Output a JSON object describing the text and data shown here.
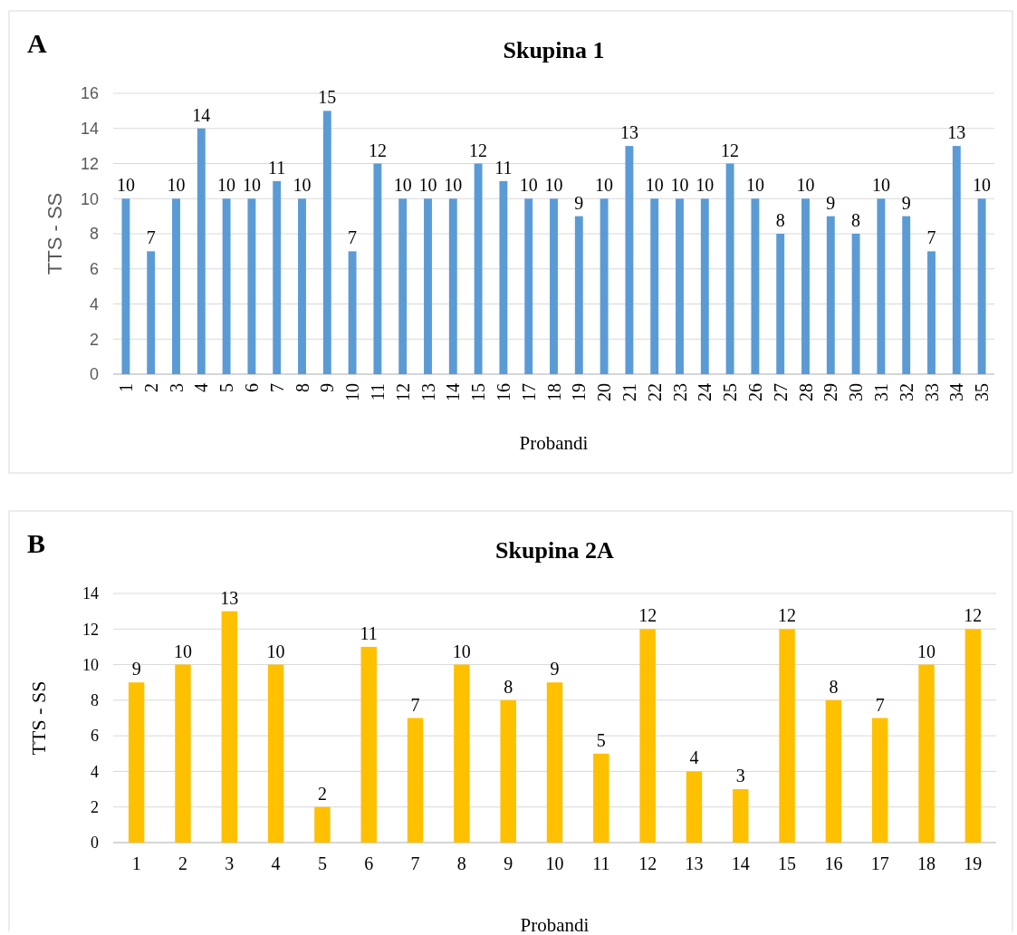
{
  "chart_data": [
    {
      "type": "bar",
      "title": "Skupina 1",
      "xlabel": "Probandi",
      "ylabel": "TTS - SS",
      "annotations": [
        "A"
      ],
      "categories": [
        "1",
        "2",
        "3",
        "4",
        "5",
        "6",
        "7",
        "8",
        "9",
        "10",
        "11",
        "12",
        "13",
        "14",
        "15",
        "16",
        "17",
        "18",
        "19",
        "20",
        "21",
        "22",
        "23",
        "24",
        "25",
        "26",
        "27",
        "28",
        "29",
        "30",
        "31",
        "32",
        "33",
        "34",
        "35"
      ],
      "values": [
        10,
        7,
        10,
        14,
        10,
        10,
        11,
        10,
        15,
        7,
        12,
        10,
        10,
        10,
        12,
        11,
        10,
        10,
        9,
        10,
        13,
        10,
        10,
        10,
        12,
        10,
        8,
        10,
        9,
        8,
        10,
        9,
        7,
        13,
        10
      ],
      "color": "#5b9bd5",
      "ylim": [
        0,
        16
      ],
      "yticks": [
        0,
        2,
        4,
        6,
        8,
        10,
        12,
        14,
        16
      ],
      "grid": "y",
      "data_labels": true
    },
    {
      "type": "bar",
      "title": "Skupina 2A",
      "xlabel": "Probandi",
      "ylabel": "TTS - SS",
      "annotations": [
        "B"
      ],
      "categories": [
        "1",
        "2",
        "3",
        "4",
        "5",
        "6",
        "7",
        "8",
        "9",
        "10",
        "11",
        "12",
        "13",
        "14",
        "15",
        "16",
        "17",
        "18",
        "19"
      ],
      "values": [
        9,
        10,
        13,
        10,
        2,
        11,
        7,
        10,
        8,
        9,
        5,
        12,
        4,
        3,
        12,
        8,
        7,
        10,
        12
      ],
      "color": "#ffc000",
      "ylim": [
        0,
        14
      ],
      "yticks": [
        0,
        2,
        4,
        6,
        8,
        10,
        12,
        14
      ],
      "grid": "y",
      "data_labels": true
    }
  ]
}
